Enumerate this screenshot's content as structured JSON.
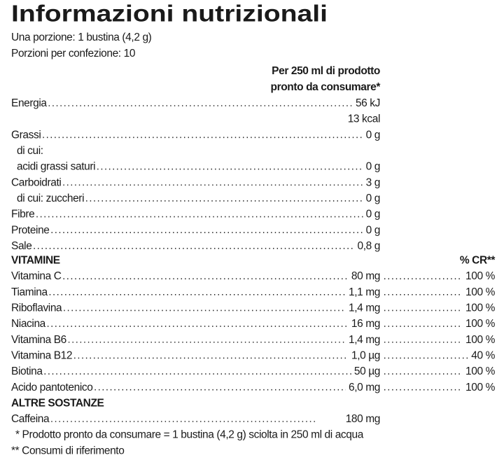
{
  "title": "Informazioni nutrizionali",
  "serving": [
    "Una porzione: 1 bustina (4,2 g)",
    "Porzioni per confezione: 10"
  ],
  "column_header": [
    "Per 250 ml di prodotto",
    "pronto da consumare*"
  ],
  "nutrients": [
    {
      "label": "Energia",
      "values": [
        "56 kJ",
        "13 kcal"
      ]
    },
    {
      "label": "Grassi",
      "value": "0 g",
      "sub_heading": "di cui:",
      "sub": [
        {
          "label": "acidi grassi saturi",
          "value": "0 g"
        }
      ]
    },
    {
      "label": "Carboidrati",
      "value": "3 g",
      "sub": [
        {
          "label": "di cui: zuccheri",
          "value": "0 g"
        }
      ]
    },
    {
      "label": "Fibre",
      "value": "0 g"
    },
    {
      "label": "Proteine",
      "value": "0 g"
    },
    {
      "label": "Sale",
      "value": "0,8 g"
    }
  ],
  "vitamins": {
    "heading": "VITAMINE",
    "cr_header": "% CR**",
    "rows": [
      {
        "label": "Vitamina C",
        "value": "80 mg",
        "cr": "100 %"
      },
      {
        "label": "Tiamina",
        "value": "1,1 mg",
        "cr": "100 %"
      },
      {
        "label": "Riboflavina",
        "value": "1,4 mg",
        "cr": "100 %"
      },
      {
        "label": "Niacina",
        "value": "16 mg",
        "cr": "100 %"
      },
      {
        "label": "Vitamina B6",
        "value": "1,4 mg",
        "cr": "100 %"
      },
      {
        "label": "Vitamina B12",
        "value": "1,0 µg",
        "cr": "40 %"
      },
      {
        "label": "Biotina",
        "value": "50 µg",
        "cr": "100 %"
      },
      {
        "label": "Acido pantotenico",
        "value": "6,0 mg",
        "cr": "100 %"
      }
    ]
  },
  "other": {
    "heading": "ALTRE SOSTANZE",
    "rows": [
      {
        "label": "Caffeina",
        "value": "180 mg"
      }
    ]
  },
  "footnotes": [
    "* Prodotto pronto da consumare = 1 bustina (4,2 g) sciolta in 250 ml di acqua",
    "** Consumi di riferimento"
  ]
}
